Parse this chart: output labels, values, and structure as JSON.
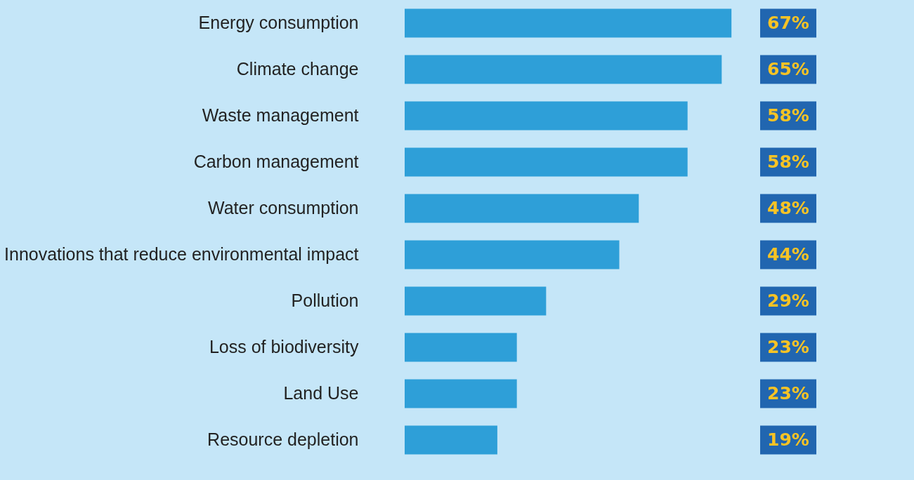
{
  "chart_data": {
    "type": "bar",
    "orientation": "horizontal",
    "categories": [
      "Energy consumption",
      "Climate change",
      "Waste management",
      "Carbon management",
      "Water consumption",
      "Innovations that reduce environmental impact",
      "Pollution",
      "Loss of biodiversity",
      "Land Use",
      "Resource depletion"
    ],
    "values": [
      67,
      65,
      58,
      58,
      48,
      44,
      29,
      23,
      23,
      19
    ],
    "value_labels": [
      "67%",
      "65%",
      "58%",
      "58%",
      "48%",
      "44%",
      "29%",
      "23%",
      "23%",
      "19%"
    ],
    "color": "#2e9fd8"
  }
}
